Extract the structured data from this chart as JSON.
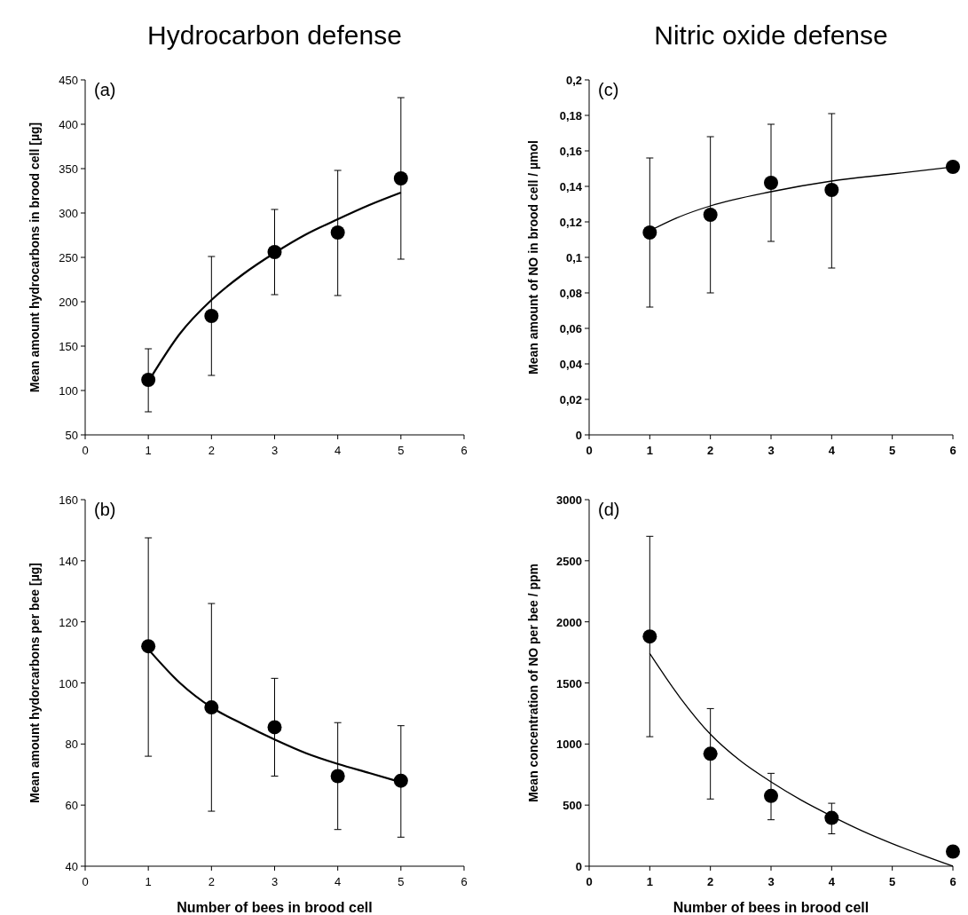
{
  "chart_data": [
    {
      "type": "scatter",
      "title": "Hydrocarbon defense",
      "ylabel": "Mean amount hydrocarbons in brood cell [µg]",
      "annotations": [
        "(a)"
      ],
      "xlim": [
        0,
        6
      ],
      "xticks": [
        0,
        1,
        2,
        3,
        4,
        5,
        6
      ],
      "ylim": [
        50,
        450
      ],
      "yticks": [
        50,
        100,
        150,
        200,
        250,
        300,
        350,
        400,
        450
      ],
      "grid": false,
      "series": [
        {
          "marker": "circle",
          "color": "#000000",
          "x": [
            1,
            2,
            3,
            4,
            5
          ],
          "values": [
            112,
            184,
            256,
            278,
            339
          ],
          "errors": [
            [
              76,
              147
            ],
            [
              117,
              251
            ],
            [
              208,
              304
            ],
            [
              207,
              348
            ],
            [
              248,
              430
            ]
          ]
        },
        {
          "type": "line",
          "marker": "none",
          "color": "#000000",
          "line_style": "solid",
          "x": [
            1,
            1.5,
            2,
            2.5,
            3,
            3.5,
            4,
            4.5,
            5
          ],
          "values": [
            110,
            164,
            202,
            231,
            255,
            276,
            293,
            309,
            323
          ]
        }
      ]
    },
    {
      "type": "scatter",
      "title": "Nitric oxide defense",
      "ylabel": "Mean amount of NO in brood cell / µmol",
      "annotations": [
        "(c)"
      ],
      "xlim": [
        0,
        6
      ],
      "xticks": [
        0,
        1,
        2,
        3,
        4,
        5,
        6
      ],
      "ylim": [
        0,
        0.2
      ],
      "yticks": [
        0,
        {
          "value": 0.02,
          "label": "0,02"
        },
        {
          "value": 0.04,
          "label": "0,04"
        },
        {
          "value": 0.06,
          "label": "0,06"
        },
        {
          "value": 0.08,
          "label": "0,08"
        },
        {
          "value": 0.1,
          "label": "0,1"
        },
        {
          "value": 0.12,
          "label": "0,12"
        },
        {
          "value": 0.14,
          "label": "0,14"
        },
        {
          "value": 0.16,
          "label": "0,16"
        },
        {
          "value": 0.18,
          "label": "0,18"
        },
        {
          "value": 0.2,
          "label": "0,2"
        }
      ],
      "grid": false,
      "series": [
        {
          "marker": "circle",
          "color": "#000000",
          "x": [
            1,
            2,
            3,
            4,
            6
          ],
          "values": [
            0.114,
            0.124,
            0.142,
            0.138,
            0.151
          ],
          "errors": [
            [
              0.072,
              0.156
            ],
            [
              0.08,
              0.168
            ],
            [
              0.109,
              0.175
            ],
            [
              0.094,
              0.181
            ],
            null
          ]
        },
        {
          "type": "line",
          "marker": "none",
          "color": "#000000",
          "line_style": "solid",
          "x": [
            1,
            1.5,
            2,
            3,
            4,
            5,
            6
          ],
          "values": [
            0.115,
            0.123,
            0.129,
            0.137,
            0.143,
            0.147,
            0.151
          ]
        }
      ]
    },
    {
      "type": "scatter",
      "xlabel": "Number of bees in brood cell",
      "ylabel": "Mean amount hydorcarbons per bee [µg]",
      "annotations": [
        "(b)"
      ],
      "xlim": [
        0,
        6
      ],
      "xticks": [
        0,
        1,
        2,
        3,
        4,
        5,
        6
      ],
      "ylim": [
        40,
        160
      ],
      "yticks": [
        40,
        60,
        80,
        100,
        120,
        140,
        160
      ],
      "grid": false,
      "series": [
        {
          "marker": "circle",
          "color": "#000000",
          "x": [
            1,
            2,
            3,
            4,
            5
          ],
          "values": [
            112,
            92,
            85.5,
            69.5,
            68
          ],
          "errors": [
            [
              76,
              147.5
            ],
            [
              58,
              126
            ],
            [
              69.5,
              101.5
            ],
            [
              52,
              87
            ],
            [
              49.5,
              86
            ]
          ]
        },
        {
          "type": "line",
          "marker": "none",
          "color": "#000000",
          "line_style": "solid",
          "x": [
            1,
            1.5,
            2,
            2.5,
            3,
            3.5,
            4,
            4.5,
            5
          ],
          "values": [
            111,
            100,
            92,
            86.5,
            81.5,
            77,
            73.5,
            70.5,
            67.5
          ]
        }
      ]
    },
    {
      "type": "scatter",
      "xlabel": "Number of bees in brood cell",
      "ylabel": "Mean concentration of NO per bee / ppm",
      "annotations": [
        "(d)"
      ],
      "xlim": [
        0,
        6
      ],
      "xticks": [
        0,
        1,
        2,
        3,
        4,
        5,
        6
      ],
      "ylim": [
        0,
        3000
      ],
      "yticks": [
        0,
        500,
        1000,
        1500,
        2000,
        2500,
        3000
      ],
      "grid": false,
      "series": [
        {
          "marker": "circle",
          "color": "#000000",
          "x": [
            1,
            2,
            3,
            4,
            6
          ],
          "values": [
            1880,
            920,
            575,
            395,
            120
          ],
          "errors": [
            [
              1060,
              2700
            ],
            [
              550,
              1290
            ],
            [
              380,
              760
            ],
            [
              265,
              515
            ],
            null
          ]
        },
        {
          "type": "line",
          "marker": "none",
          "color": "#000000",
          "line_style": "solid",
          "x": [
            1,
            1.5,
            2,
            2.5,
            3,
            3.5,
            4,
            4.5,
            5,
            5.5,
            6
          ],
          "values": [
            1740,
            1380,
            1080,
            860,
            690,
            540,
            410,
            290,
            185,
            90,
            0
          ]
        }
      ]
    }
  ]
}
